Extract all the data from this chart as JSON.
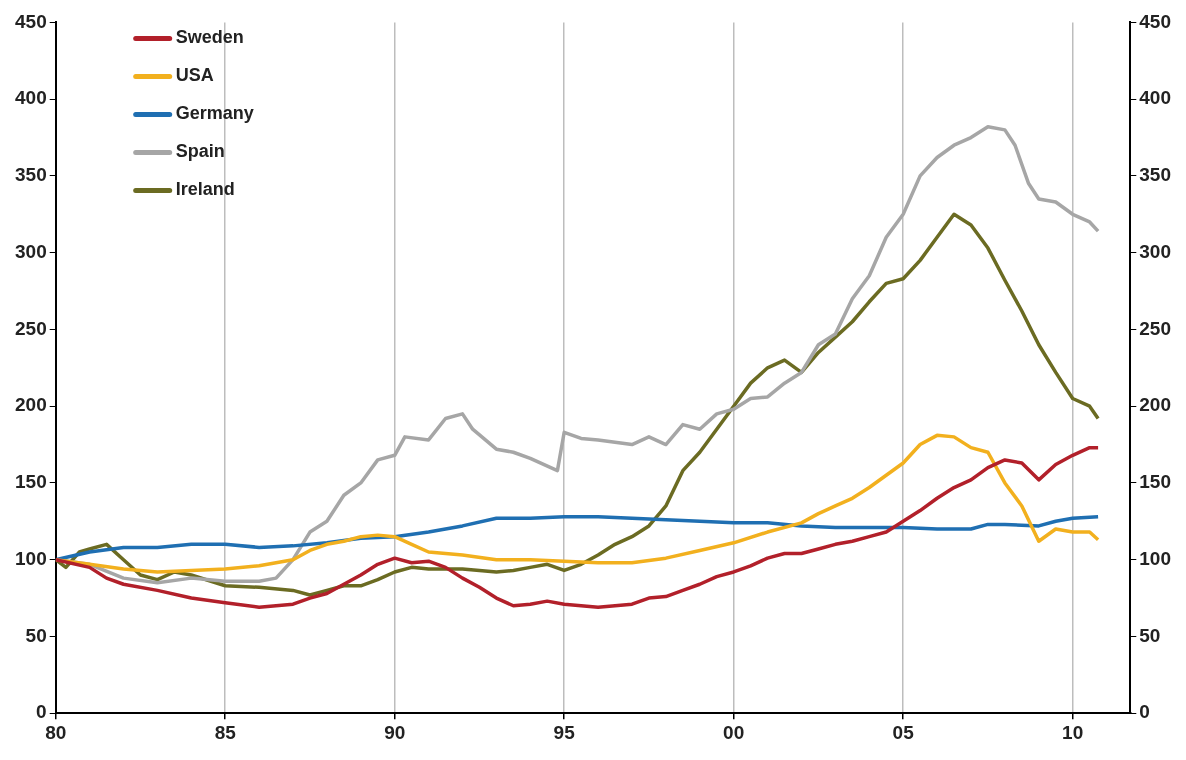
{
  "chart_data": {
    "type": "line",
    "grid": "x",
    "legend": "top left",
    "marker": "none",
    "line_style": "solid",
    "xlim": [
      1980,
      2011.7
    ],
    "xticks": [
      {
        "value": 1980,
        "label": "80"
      },
      {
        "value": 1985,
        "label": "85"
      },
      {
        "value": 1990,
        "label": "90"
      },
      {
        "value": 1995,
        "label": "95"
      },
      {
        "value": 2000,
        "label": "00"
      },
      {
        "value": 2005,
        "label": "05"
      },
      {
        "value": 2010,
        "label": "10"
      }
    ],
    "ylim": [
      0,
      450
    ],
    "yticks": [
      0,
      50,
      100,
      150,
      200,
      250,
      300,
      350,
      400,
      450
    ],
    "y2lim": [
      0,
      450
    ],
    "y2ticks": [
      0,
      50,
      100,
      150,
      200,
      250,
      300,
      350,
      400,
      450
    ],
    "series": [
      {
        "name": "Sweden",
        "color": "#b2202a",
        "x": [
          1980,
          1981,
          1981.5,
          1982,
          1983,
          1984,
          1985,
          1986,
          1987,
          1987.5,
          1988,
          1988.5,
          1989,
          1989.5,
          1990,
          1990.5,
          1991,
          1991.5,
          1992,
          1992.5,
          1993,
          1993.5,
          1994,
          1994.5,
          1995,
          1995.5,
          1996,
          1996.5,
          1997,
          1997.5,
          1998,
          1998.5,
          1999,
          1999.5,
          2000,
          2000.5,
          2001,
          2001.5,
          2002,
          2002.5,
          2003,
          2003.5,
          2004,
          2004.5,
          2005,
          2005.5,
          2006,
          2006.5,
          2007,
          2007.5,
          2008,
          2008.5,
          2009,
          2009.5,
          2010,
          2010.5,
          2010.75
        ],
        "values": [
          100,
          95,
          88,
          84,
          80,
          75,
          72,
          69,
          71,
          75,
          78,
          84,
          90,
          97,
          101,
          98,
          99,
          95,
          88,
          82,
          75,
          70,
          71,
          73,
          71,
          70,
          69,
          70,
          71,
          75,
          76,
          80,
          84,
          89,
          92,
          96,
          101,
          104,
          104,
          107,
          110,
          112,
          115,
          118,
          125,
          132,
          140,
          147,
          152,
          160,
          165,
          163,
          152,
          162,
          168,
          173,
          173
        ]
      },
      {
        "name": "USA",
        "color": "#f2b01e",
        "x": [
          1980,
          1981,
          1982,
          1983,
          1984,
          1985,
          1986,
          1987,
          1987.5,
          1988,
          1988.5,
          1989,
          1989.5,
          1990,
          1990.5,
          1991,
          1992,
          1993,
          1994,
          1995,
          1996,
          1997,
          1998,
          1999,
          2000,
          2001,
          2002,
          2002.5,
          2003,
          2003.5,
          2004,
          2004.5,
          2005,
          2005.5,
          2006,
          2006.5,
          2007,
          2007.5,
          2008,
          2008.5,
          2009,
          2009.5,
          2010,
          2010.5,
          2010.75
        ],
        "values": [
          100,
          97,
          94,
          92,
          93,
          94,
          96,
          100,
          106,
          110,
          112,
          115,
          116,
          115,
          110,
          105,
          103,
          100,
          100,
          99,
          98,
          98,
          101,
          106,
          111,
          118,
          124,
          130,
          135,
          140,
          147,
          155,
          163,
          175,
          181,
          180,
          173,
          170,
          150,
          135,
          112,
          120,
          118,
          118,
          113
        ]
      },
      {
        "name": "Germany",
        "color": "#1f6fb2",
        "x": [
          1980,
          1981,
          1982,
          1983,
          1984,
          1985,
          1986,
          1987,
          1988,
          1989,
          1990,
          1991,
          1992,
          1993,
          1994,
          1995,
          1996,
          1997,
          1998,
          1999,
          2000,
          2001,
          2002,
          2003,
          2004,
          2005,
          2006,
          2007,
          2007.5,
          2008,
          2009,
          2009.5,
          2010,
          2010.75
        ],
        "values": [
          100,
          105,
          108,
          108,
          110,
          110,
          108,
          109,
          111,
          114,
          115,
          118,
          122,
          127,
          127,
          128,
          128,
          127,
          126,
          125,
          124,
          124,
          122,
          121,
          121,
          121,
          120,
          120,
          123,
          123,
          122,
          125,
          127,
          128
        ]
      },
      {
        "name": "Spain",
        "color": "#a6a6a6",
        "x": [
          1980,
          1981,
          1982,
          1983,
          1984,
          1985,
          1986,
          1986.5,
          1987,
          1987.5,
          1988,
          1988.5,
          1989,
          1989.5,
          1990,
          1990.3,
          1991,
          1991.5,
          1992,
          1992.3,
          1993,
          1993.5,
          1994,
          1994.8,
          1995,
          1995.5,
          1996,
          1997,
          1997.5,
          1998,
          1998.5,
          1999,
          1999.5,
          2000,
          2000.5,
          2001,
          2001.5,
          2002,
          2002.5,
          2003,
          2003.5,
          2004,
          2004.5,
          2005,
          2005.5,
          2006,
          2006.5,
          2007,
          2007.5,
          2008,
          2008.3,
          2008.7,
          2009,
          2009.5,
          2010,
          2010.5,
          2010.75
        ],
        "values": [
          100,
          97,
          88,
          85,
          88,
          86,
          86,
          88,
          100,
          118,
          125,
          142,
          150,
          165,
          168,
          180,
          178,
          192,
          195,
          185,
          172,
          170,
          166,
          158,
          183,
          179,
          178,
          175,
          180,
          175,
          188,
          185,
          195,
          198,
          205,
          206,
          215,
          222,
          240,
          247,
          270,
          285,
          310,
          325,
          350,
          362,
          370,
          375,
          382,
          380,
          370,
          345,
          335,
          333,
          325,
          320,
          314
        ]
      },
      {
        "name": "Ireland",
        "color": "#6b6b22",
        "x": [
          1980,
          1980.3,
          1980.7,
          1981,
          1981.5,
          1982,
          1982.5,
          1983,
          1983.5,
          1984,
          1985,
          1986,
          1987,
          1987.5,
          1988,
          1988.5,
          1989,
          1989.5,
          1990,
          1990.5,
          1991,
          1992,
          1993,
          1993.5,
          1994,
          1994.5,
          1995,
          1995.5,
          1996,
          1996.5,
          1997,
          1997.5,
          1998,
          1998.5,
          1999,
          1999.5,
          2000,
          2000.5,
          2001,
          2001.5,
          2002,
          2002.5,
          2003,
          2003.5,
          2004,
          2004.5,
          2005,
          2005.5,
          2006,
          2006.5,
          2007,
          2007.5,
          2008,
          2008.5,
          2009,
          2009.5,
          2010,
          2010.5,
          2010.75
        ],
        "values": [
          100,
          95,
          105,
          107,
          110,
          100,
          90,
          87,
          92,
          90,
          83,
          82,
          80,
          77,
          80,
          83,
          83,
          87,
          92,
          95,
          94,
          94,
          92,
          93,
          95,
          97,
          93,
          97,
          103,
          110,
          115,
          122,
          135,
          158,
          170,
          185,
          200,
          215,
          225,
          230,
          222,
          235,
          245,
          255,
          268,
          280,
          283,
          295,
          310,
          325,
          318,
          303,
          282,
          262,
          240,
          222,
          205,
          200,
          192
        ]
      }
    ]
  }
}
